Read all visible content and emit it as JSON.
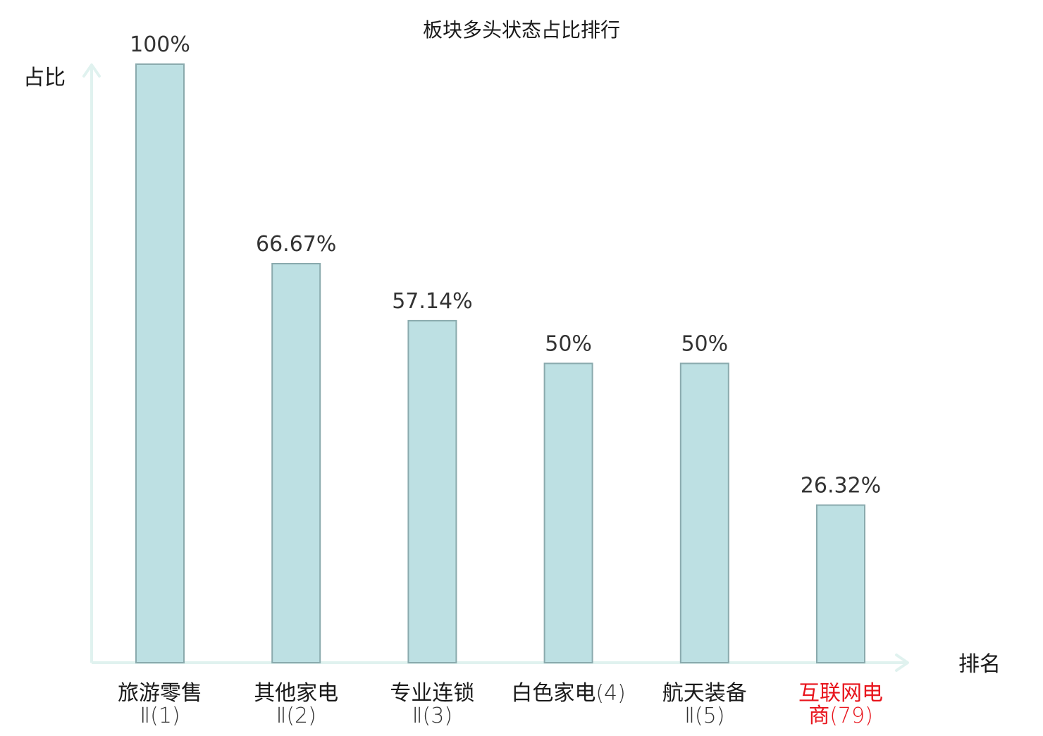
{
  "chart_data": {
    "type": "bar",
    "title": "板块多头状态占比排行",
    "ylabel": "占比",
    "xlabel": "排名",
    "ylim": [
      0,
      100
    ],
    "grid": false,
    "categories": [
      {
        "name": "旅游零售",
        "rank": "Ⅱ(1)",
        "highlight": false
      },
      {
        "name": "其他家电",
        "rank": "Ⅱ(2)",
        "highlight": false
      },
      {
        "name": "专业连锁",
        "rank": "Ⅱ(3)",
        "highlight": false
      },
      {
        "name": "白色家电",
        "rank": "(4)",
        "highlight": false,
        "inline": true
      },
      {
        "name": "航天装备",
        "rank": "Ⅱ(5)",
        "highlight": false
      },
      {
        "name": "互联网电",
        "rank": "商(79)",
        "highlight": true
      }
    ],
    "values": [
      100,
      66.67,
      57.14,
      50,
      50,
      26.32
    ],
    "value_labels": [
      "100%",
      "66.67%",
      "57.14%",
      "50%",
      "50%",
      "26.32%"
    ]
  },
  "colors": {
    "bar_fill": "#bde0e3",
    "bar_stroke": "#8aaaad",
    "axis": "#e0f2ef",
    "text": "#1a1a1a",
    "value_text": "#333333",
    "highlight_text": "#e8141c",
    "rank_text": "#333333"
  }
}
